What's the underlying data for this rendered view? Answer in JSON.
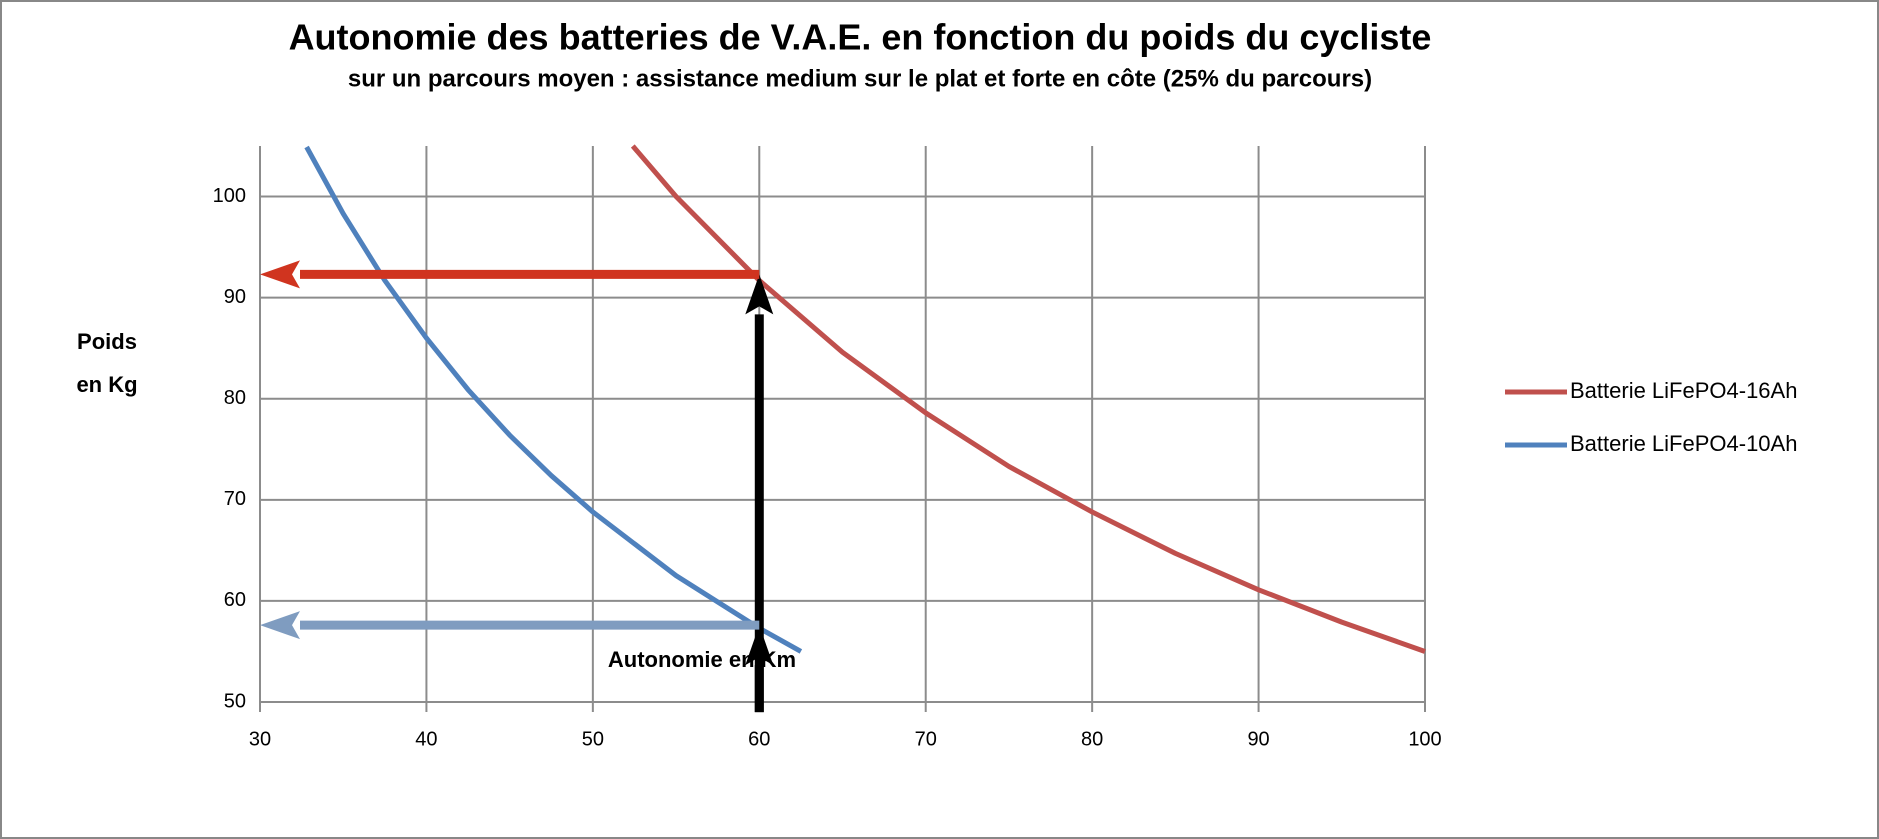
{
  "chart_data": {
    "type": "line",
    "title": "Autonomie des batteries  de V.A.E.   en fonction du poids du cycliste",
    "subtitle": "sur un parcours moyen : assistance medium sur le plat et forte en côte (25% du parcours)",
    "xlabel": "Autonomie en Km",
    "ylabel": [
      "Poids",
      "en Kg"
    ],
    "xlim": [
      30,
      100
    ],
    "ylim": [
      50,
      105
    ],
    "xticks": [
      30,
      40,
      50,
      60,
      70,
      80,
      90,
      100
    ],
    "yticks": [
      50,
      60,
      70,
      80,
      90,
      100
    ],
    "grid": true,
    "legend": "right",
    "series": [
      {
        "name": "Batterie LiFePO4-16Ah",
        "color": "#c0504d",
        "x": [
          52.4,
          55,
          60,
          65,
          70,
          75,
          80,
          85,
          90,
          95,
          100
        ],
        "values": [
          105,
          100,
          91.7,
          84.6,
          78.6,
          73.3,
          68.8,
          64.7,
          61.1,
          57.9,
          55
        ]
      },
      {
        "name": "Batterie LiFePO4-10Ah",
        "color": "#4f81bd",
        "x": [
          32.8,
          35,
          37.5,
          40,
          42.5,
          45,
          47.5,
          50,
          55,
          60,
          62.5
        ],
        "values": [
          104.9,
          98.3,
          91.7,
          86,
          80.9,
          76.4,
          72.4,
          68.8,
          62.5,
          57.3,
          55
        ]
      }
    ],
    "arrows": [
      {
        "color": "#000000",
        "from": [
          60,
          49
        ],
        "to": [
          60,
          92.3
        ]
      },
      {
        "color": "#000000",
        "from": [
          60,
          49
        ],
        "to": [
          60,
          57.6
        ]
      },
      {
        "color": "#d0341f",
        "from": [
          60,
          92.3
        ],
        "to": [
          30,
          92.3
        ]
      },
      {
        "color": "#7f9cc0",
        "from": [
          60,
          57.6
        ],
        "to": [
          30,
          57.6
        ]
      }
    ]
  }
}
